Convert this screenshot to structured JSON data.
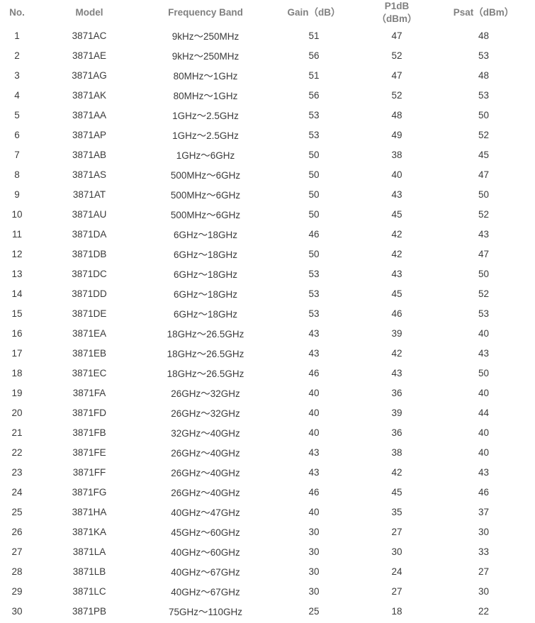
{
  "table": {
    "columns": [
      {
        "key": "no",
        "label": "No."
      },
      {
        "key": "model",
        "label": "Model"
      },
      {
        "key": "band",
        "label": "Frequency Band"
      },
      {
        "key": "gain",
        "label": "Gain（dB）"
      },
      {
        "key": "p1db",
        "label": "P1dB\n（dBm）"
      },
      {
        "key": "psat",
        "label": "Psat（dBm）"
      }
    ],
    "rows": [
      [
        1,
        "3871AC",
        "9kHz～250MHz",
        51,
        47,
        48
      ],
      [
        2,
        "3871AE",
        "9kHz～250MHz",
        56,
        52,
        53
      ],
      [
        3,
        "3871AG",
        "80MHz～1GHz",
        51,
        47,
        48
      ],
      [
        4,
        "3871AK",
        "80MHz～1GHz",
        56,
        52,
        53
      ],
      [
        5,
        "3871AA",
        "1GHz～2.5GHz",
        53,
        48,
        50
      ],
      [
        6,
        "3871AP",
        "1GHz～2.5GHz",
        53,
        49,
        52
      ],
      [
        7,
        "3871AB",
        "1GHz～6GHz",
        50,
        38,
        45
      ],
      [
        8,
        "3871AS",
        "500MHz～6GHz",
        50,
        40,
        47
      ],
      [
        9,
        "3871AT",
        "500MHz～6GHz",
        50,
        43,
        50
      ],
      [
        10,
        "3871AU",
        "500MHz～6GHz",
        50,
        45,
        52
      ],
      [
        11,
        "3871DA",
        "6GHz～18GHz",
        46,
        42,
        43
      ],
      [
        12,
        "3871DB",
        "6GHz～18GHz",
        50,
        42,
        47
      ],
      [
        13,
        "3871DC",
        "6GHz～18GHz",
        53,
        43,
        50
      ],
      [
        14,
        "3871DD",
        "6GHz～18GHz",
        53,
        45,
        52
      ],
      [
        15,
        "3871DE",
        "6GHz～18GHz",
        53,
        46,
        53
      ],
      [
        16,
        "3871EA",
        "18GHz～26.5GHz",
        43,
        39,
        40
      ],
      [
        17,
        "3871EB",
        "18GHz～26.5GHz",
        43,
        42,
        43
      ],
      [
        18,
        "3871EC",
        "18GHz～26.5GHz",
        46,
        43,
        50
      ],
      [
        19,
        "3871FA",
        "26GHz～32GHz",
        40,
        36,
        40
      ],
      [
        20,
        "3871FD",
        "26GHz～32GHz",
        40,
        39,
        44
      ],
      [
        21,
        "3871FB",
        "32GHz～40GHz",
        40,
        36,
        40
      ],
      [
        22,
        "3871FE",
        "26GHz～40GHz",
        43,
        38,
        40
      ],
      [
        23,
        "3871FF",
        "26GHz～40GHz",
        43,
        42,
        43
      ],
      [
        24,
        "3871FG",
        "26GHz～40GHz",
        46,
        45,
        46
      ],
      [
        25,
        "3871HA",
        "40GHz～47GHz",
        40,
        35,
        37
      ],
      [
        26,
        "3871KA",
        "45GHz～60GHz",
        30,
        27,
        30
      ],
      [
        27,
        "3871LA",
        "40GHz～60GHz",
        30,
        30,
        33
      ],
      [
        28,
        "3871LB",
        "40GHz～67GHz",
        30,
        24,
        27
      ],
      [
        29,
        "3871LC",
        "40GHz～67GHz",
        30,
        27,
        30
      ],
      [
        30,
        "3871PB",
        "75GHz～110GHz",
        25,
        18,
        22
      ]
    ],
    "colors": {
      "header_text": "#808080",
      "body_text": "#3a3a3a",
      "background": "#ffffff"
    }
  }
}
